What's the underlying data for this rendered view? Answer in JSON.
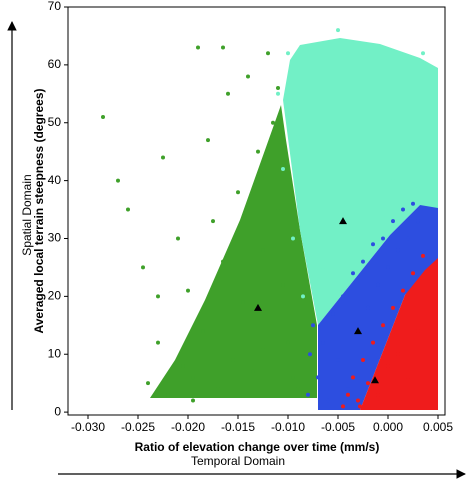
{
  "chart_data": {
    "type": "scatter",
    "x_label": "Ratio of elevation change over time (mm/s)",
    "y_label": "Averaged local terrain steepness (degrees)",
    "outer_y_label": "Spatial Domain",
    "outer_x_label": "Temporal Domain",
    "xlim": [
      -0.032,
      0.0057
    ],
    "ylim": [
      -0.5,
      70
    ],
    "xticks": [
      {
        "value": -0.03,
        "label": "-0.030"
      },
      {
        "value": -0.025,
        "label": "-0.025"
      },
      {
        "value": -0.02,
        "label": "-0.020"
      },
      {
        "value": -0.015,
        "label": "-0.015"
      },
      {
        "value": -0.01,
        "label": "-0.010"
      },
      {
        "value": -0.005,
        "label": "-0.005"
      },
      {
        "value": 0,
        "label": "0.000"
      },
      {
        "value": 0.005,
        "label": "0.005"
      }
    ],
    "yticks": [
      0,
      10,
      20,
      30,
      40,
      50,
      60,
      70
    ],
    "series": [
      {
        "color": "#3fa02a",
        "x": [
          -0.0285,
          -0.027,
          -0.026,
          -0.0245,
          -0.024,
          -0.023,
          -0.0225,
          -0.022,
          -0.021,
          -0.0205,
          -0.02,
          -0.0195,
          -0.019,
          -0.0185,
          -0.018,
          -0.0175,
          -0.017,
          -0.0165,
          -0.016,
          -0.0155,
          -0.015,
          -0.0145,
          -0.014,
          -0.0135,
          -0.013,
          -0.0125,
          -0.012,
          -0.0115,
          -0.011,
          -0.0105,
          -0.01,
          -0.0095,
          -0.009,
          -0.0085,
          -0.018,
          -0.0165,
          -0.0125,
          -0.011,
          -0.023,
          -0.0195
        ],
        "y": [
          51,
          40,
          35,
          25,
          5,
          12,
          44,
          3,
          30,
          8,
          21,
          6,
          63,
          14,
          47,
          33,
          4,
          26,
          55,
          9,
          38,
          19,
          58,
          7,
          45,
          28,
          62,
          50,
          35,
          22,
          12,
          6,
          4,
          3,
          18,
          63,
          11,
          56,
          20,
          2
        ]
      },
      {
        "color": "#72f0c6",
        "x": [
          -0.011,
          -0.0105,
          -0.01,
          -0.0095,
          -0.009,
          -0.0085,
          -0.008,
          -0.0075,
          -0.007,
          -0.0065,
          -0.006,
          -0.0055,
          -0.005,
          -0.0045,
          -0.004,
          -0.0035,
          -0.003,
          -0.0025,
          -0.002,
          -0.0015,
          -0.001,
          -0.0005,
          0,
          0.0005,
          0.001,
          0.0015,
          0.002,
          0.0025,
          0.003,
          0.0035
        ],
        "y": [
          55,
          42,
          62,
          30,
          48,
          20,
          58,
          37,
          63,
          25,
          52,
          44,
          66,
          28,
          60,
          35,
          55,
          30,
          62,
          38,
          50,
          34,
          58,
          40,
          47,
          42,
          60,
          44,
          39,
          62
        ]
      },
      {
        "color": "#2d4ee0",
        "x": [
          -0.008,
          -0.0078,
          -0.0075,
          -0.007,
          -0.0065,
          -0.006,
          -0.0055,
          -0.005,
          -0.0045,
          -0.004,
          -0.0035,
          -0.003,
          -0.0025,
          -0.002,
          -0.0015,
          -0.001,
          -0.0005,
          0,
          0.0005,
          0.001,
          0.0015,
          0.002,
          0.0025,
          0.003
        ],
        "y": [
          3,
          10,
          15,
          6,
          12,
          2,
          17,
          9,
          20,
          4,
          24,
          14,
          26,
          18,
          29,
          22,
          30,
          25,
          33,
          28,
          35,
          30,
          36,
          33
        ]
      },
      {
        "color": "#ef1c1c",
        "x": [
          -0.0045,
          -0.004,
          -0.0035,
          -0.003,
          -0.0025,
          -0.002,
          -0.0015,
          -0.001,
          -0.0005,
          0,
          0.0005,
          0.001,
          0.0015,
          0.002,
          0.0025,
          0.003,
          0.0035,
          -0.0028,
          -0.0008,
          0.0012
        ],
        "y": [
          1,
          3,
          6,
          2,
          9,
          5,
          12,
          3,
          15,
          8,
          18,
          10,
          21,
          6,
          24,
          14,
          27,
          1,
          2,
          2
        ]
      },
      {
        "color": "#000000",
        "marker": "triangle",
        "x": [
          -0.0045,
          -0.003,
          -0.0013,
          -0.013
        ],
        "y": [
          33,
          14,
          5.5,
          18
        ]
      }
    ]
  }
}
